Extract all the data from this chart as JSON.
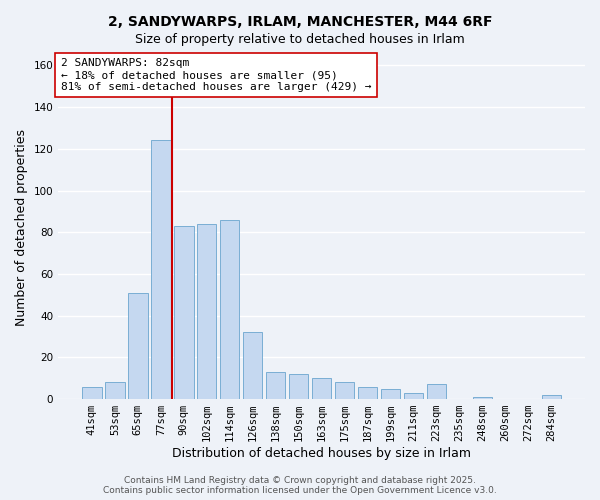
{
  "title": "2, SANDYWARPS, IRLAM, MANCHESTER, M44 6RF",
  "subtitle": "Size of property relative to detached houses in Irlam",
  "xlabel": "Distribution of detached houses by size in Irlam",
  "ylabel": "Number of detached properties",
  "bar_labels": [
    "41sqm",
    "53sqm",
    "65sqm",
    "77sqm",
    "90sqm",
    "102sqm",
    "114sqm",
    "126sqm",
    "138sqm",
    "150sqm",
    "163sqm",
    "175sqm",
    "187sqm",
    "199sqm",
    "211sqm",
    "223sqm",
    "235sqm",
    "248sqm",
    "260sqm",
    "272sqm",
    "284sqm"
  ],
  "bar_values": [
    6,
    8,
    51,
    124,
    83,
    84,
    86,
    32,
    13,
    12,
    10,
    8,
    6,
    5,
    3,
    7,
    0,
    1,
    0,
    0,
    2
  ],
  "bar_color": "#c5d8f0",
  "bar_edgecolor": "#7aaed4",
  "vline_x": 3.5,
  "vline_color": "#cc0000",
  "ylim": [
    0,
    165
  ],
  "yticks": [
    0,
    20,
    40,
    60,
    80,
    100,
    120,
    140,
    160
  ],
  "annotation_title": "2 SANDYWARPS: 82sqm",
  "annotation_line1": "← 18% of detached houses are smaller (95)",
  "annotation_line2": "81% of semi-detached houses are larger (429) →",
  "annotation_box_color": "#ffffff",
  "annotation_box_edgecolor": "#cc0000",
  "footnote_line1": "Contains HM Land Registry data © Crown copyright and database right 2025.",
  "footnote_line2": "Contains public sector information licensed under the Open Government Licence v3.0.",
  "background_color": "#eef2f8",
  "grid_color": "#ffffff",
  "title_fontsize": 10,
  "subtitle_fontsize": 9,
  "axis_label_fontsize": 9,
  "tick_fontsize": 7.5,
  "annotation_fontsize": 8,
  "footnote_fontsize": 6.5
}
